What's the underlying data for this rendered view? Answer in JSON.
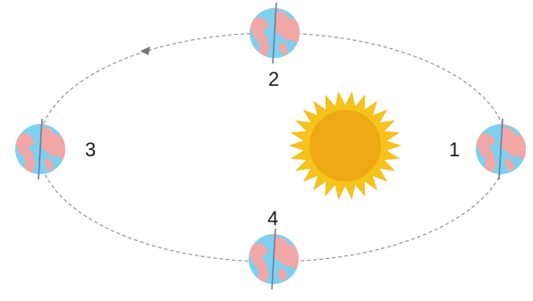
{
  "diagram": {
    "colors": {
      "orbit": "#8c8c8c",
      "ocean": "#7fd0ee",
      "land": "#f2a7a7",
      "axis": "#6b7fa0",
      "sun_rays": "#f6c21c",
      "sun_core": "#eea915",
      "label": "#1a1a1a"
    },
    "positions": [
      {
        "label": "1"
      },
      {
        "label": "2"
      },
      {
        "label": "3"
      },
      {
        "label": "4"
      }
    ]
  }
}
